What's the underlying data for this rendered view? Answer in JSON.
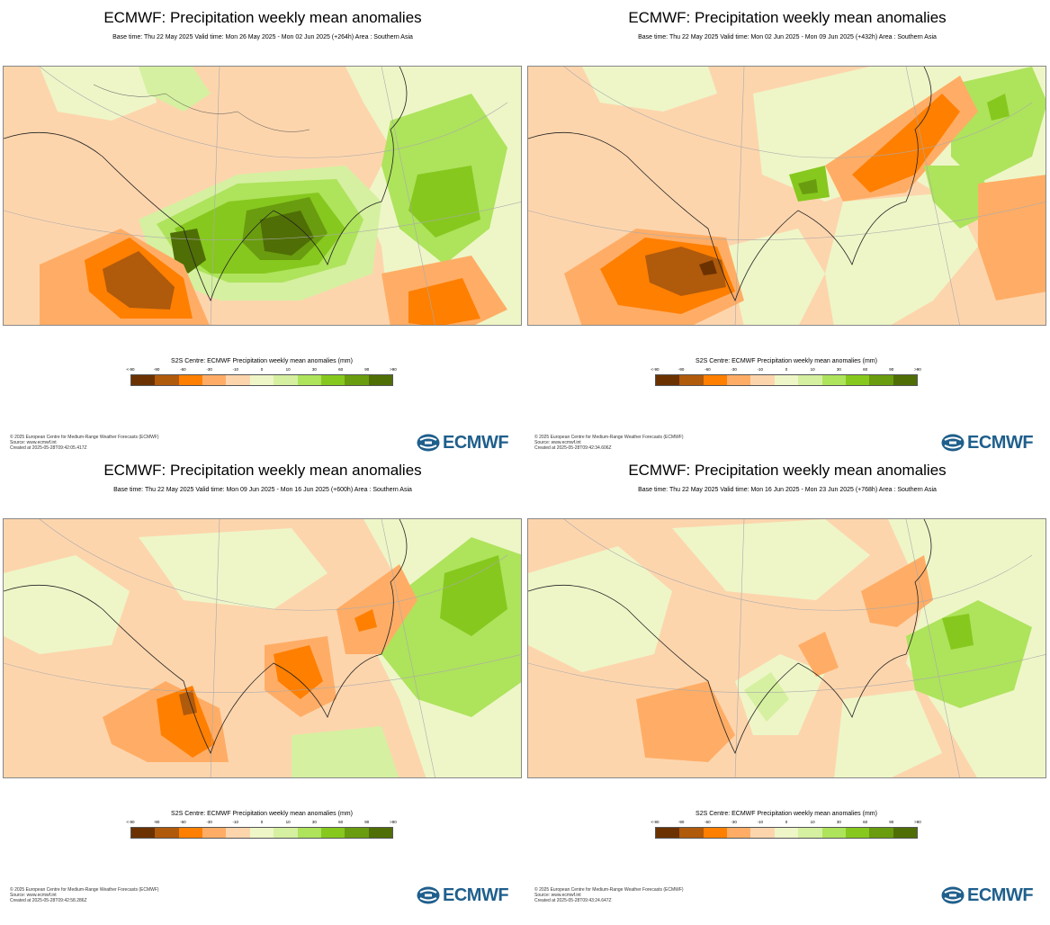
{
  "panels": [
    {
      "title": "ECMWF: Precipitation weekly mean anomalies",
      "subtitle": "Base time: Thu 22 May 2025 Valid time: Mon 26 May 2025 - Mon 02 Jun 2025 (+264h) Area : Southern Asia",
      "legend_title": "S2S Centre: ECMWF Precipitation weekly mean anomalies (mm)",
      "footer": [
        "© 2025 European Centre for Medium-Range Weather Forecasts (ECMWF)",
        "Source: www.ecmwf.int",
        "Created at 2025-05-28T09:42:05.417Z"
      ]
    },
    {
      "title": "ECMWF: Precipitation weekly mean anomalies",
      "subtitle": "Base time: Thu 22 May 2025 Valid time: Mon 02 Jun 2025 - Mon 09 Jun 2025 (+432h) Area : Southern Asia",
      "legend_title": "S2S Centre: ECMWF Precipitation weekly mean anomalies (mm)",
      "footer": [
        "© 2025 European Centre for Medium-Range Weather Forecasts (ECMWF)",
        "Source: www.ecmwf.int",
        "Created at 2025-05-28T09:42:34.606Z"
      ]
    },
    {
      "title": "ECMWF: Precipitation weekly mean anomalies",
      "subtitle": "Base time: Thu 22 May 2025 Valid time: Mon 09 Jun 2025 - Mon 16 Jun 2025 (+600h) Area : Southern Asia",
      "legend_title": "S2S Centre: ECMWF Precipitation weekly mean anomalies (mm)",
      "footer": [
        "© 2025 European Centre for Medium-Range Weather Forecasts (ECMWF)",
        "Source: www.ecmwf.int",
        "Created at 2025-05-28T09:42:58.286Z"
      ]
    },
    {
      "title": "ECMWF: Precipitation weekly mean anomalies",
      "subtitle": "Base time: Thu 22 May 2025 Valid time: Mon 16 Jun 2025 - Mon 23 Jun 2025 (+768h) Area : Southern Asia",
      "legend_title": "S2S Centre: ECMWF Precipitation weekly mean anomalies (mm)",
      "footer": [
        "© 2025 European Centre for Medium-Range Weather Forecasts (ECMWF)",
        "Source: www.ecmwf.int",
        "Created at 2025-05-28T09:43:24.647Z"
      ]
    }
  ],
  "legend": {
    "ticks": [
      "<-90",
      "-90",
      "-60",
      "-30",
      "-10",
      "0",
      "10",
      "30",
      "60",
      "90",
      ">90"
    ],
    "colors": [
      "#6b3200",
      "#b05a0c",
      "#ff7f00",
      "#ffad66",
      "#fdd5ad",
      "#eef6c8",
      "#d5f0a0",
      "#aee35c",
      "#86c81e",
      "#6a9c0f",
      "#4f6e06"
    ]
  },
  "logo": {
    "text": "ECMWF",
    "icon": "ecmwf-logo-icon",
    "color": "#1f5f8c"
  }
}
